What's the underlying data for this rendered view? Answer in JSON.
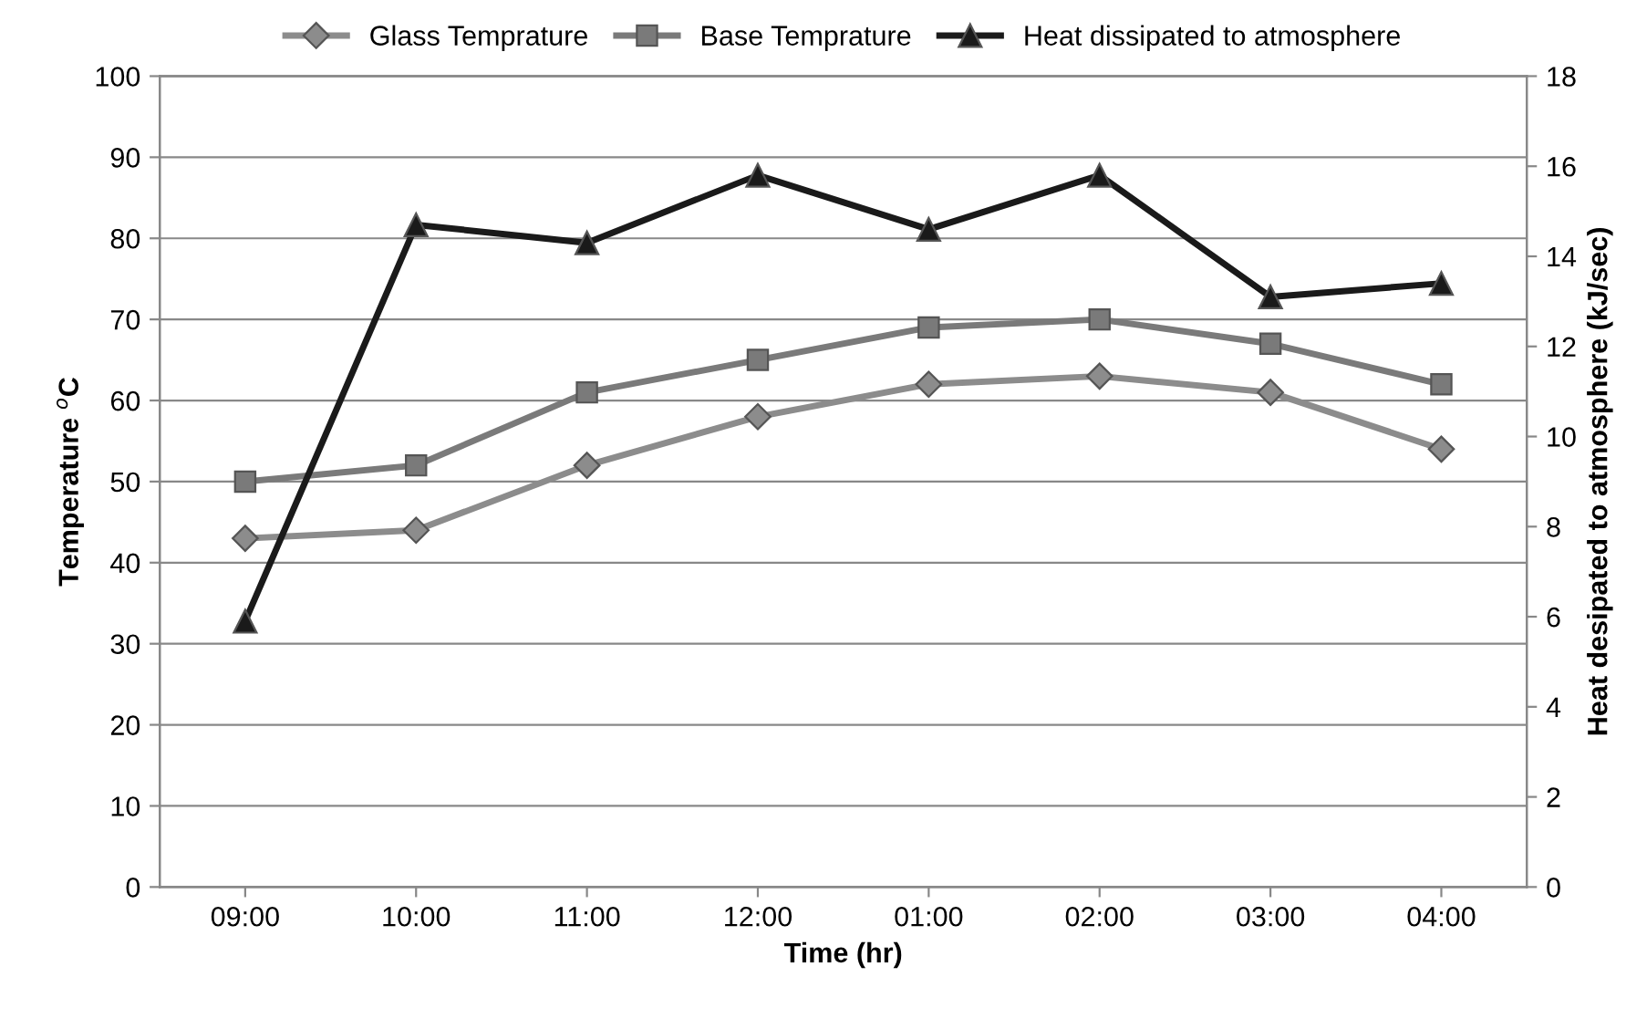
{
  "chart_data": {
    "type": "line",
    "xlabel": "Time (hr)",
    "ylabel": "Temperature $^{o}$C",
    "y2label": "Heat desipated to atmosphere (kJ/sec)",
    "categories": [
      "09:00",
      "10:00",
      "11:00",
      "12:00",
      "01:00",
      "02:00",
      "03:00",
      "04:00"
    ],
    "series": [
      {
        "name": "Glass Temprature",
        "color": "#8c8c8c",
        "marker": "diamond",
        "values": [
          43,
          44,
          52,
          58,
          62,
          63,
          61,
          54
        ]
      },
      {
        "name": "Base Temprature",
        "color": "#7a7a7a",
        "marker": "square",
        "values": [
          50,
          52,
          61,
          65,
          69,
          70,
          67,
          62
        ]
      },
      {
        "name": "Heat dissipated to atmosphere",
        "color": "#1a1a1a",
        "marker": "triangle",
        "axis": "y2",
        "values": [
          5.9,
          14.7,
          14.3,
          15.8,
          14.6,
          15.8,
          13.1,
          13.4
        ]
      }
    ],
    "ylim": [
      0,
      100
    ],
    "yticks": [
      0,
      10,
      20,
      30,
      40,
      50,
      60,
      70,
      80,
      90,
      100
    ],
    "y2lim": [
      0,
      18
    ],
    "y2ticks": [
      0,
      2,
      4,
      6,
      8,
      10,
      12,
      14,
      16,
      18
    ],
    "grid": "y",
    "legend": "top",
    "line_style": "solid"
  }
}
